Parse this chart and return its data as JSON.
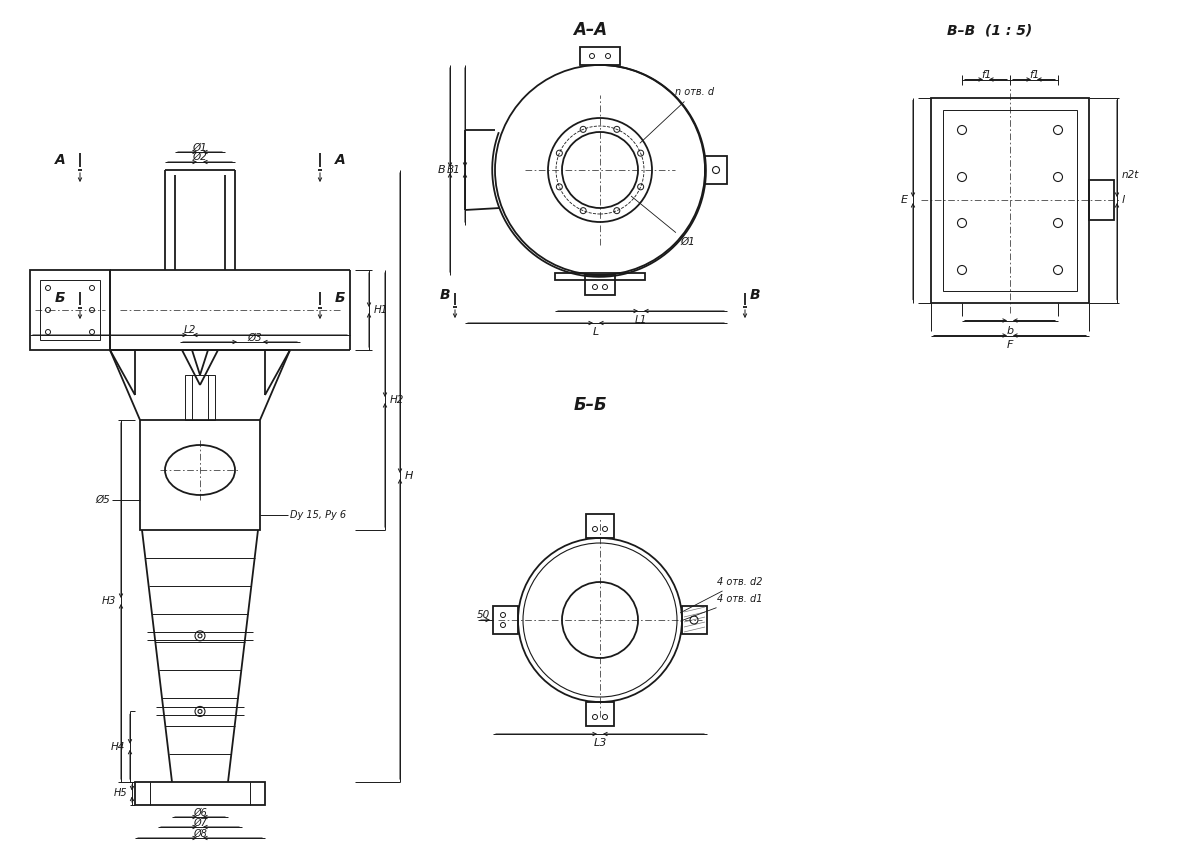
{
  "bg_color": "#ffffff",
  "line_color": "#1a1a1a",
  "view_AA_title": "A–A",
  "view_BB_title": "Б–Б",
  "view_VV_title": "B–B  (1 : 5)",
  "labels": {
    "D1": "Ø1",
    "D2": "Ø2",
    "D3": "Ø3",
    "D5": "Ø5",
    "D6": "Ø6",
    "D7": "Ø7",
    "D8": "Ø8",
    "H": "H",
    "H1": "H1",
    "H2": "H2",
    "H3": "H3",
    "H4": "H4",
    "H5": "H5",
    "L": "L",
    "L1": "L1",
    "L2": "L2",
    "L3": "L3",
    "B": "B",
    "B1": "B1",
    "E": "E",
    "b": "b",
    "F": "F",
    "f1": "f1",
    "l": "l",
    "n_otv_d": "n отв. d",
    "otv_d1": "4 отв. d1",
    "otv_d2": "4 отв. d2",
    "n2t": "n2t",
    "Dy": "Dy 15, Ру 6",
    "dim_50": "50",
    "A": "A",
    "B_mark": "Б",
    "V_mark": "B"
  }
}
